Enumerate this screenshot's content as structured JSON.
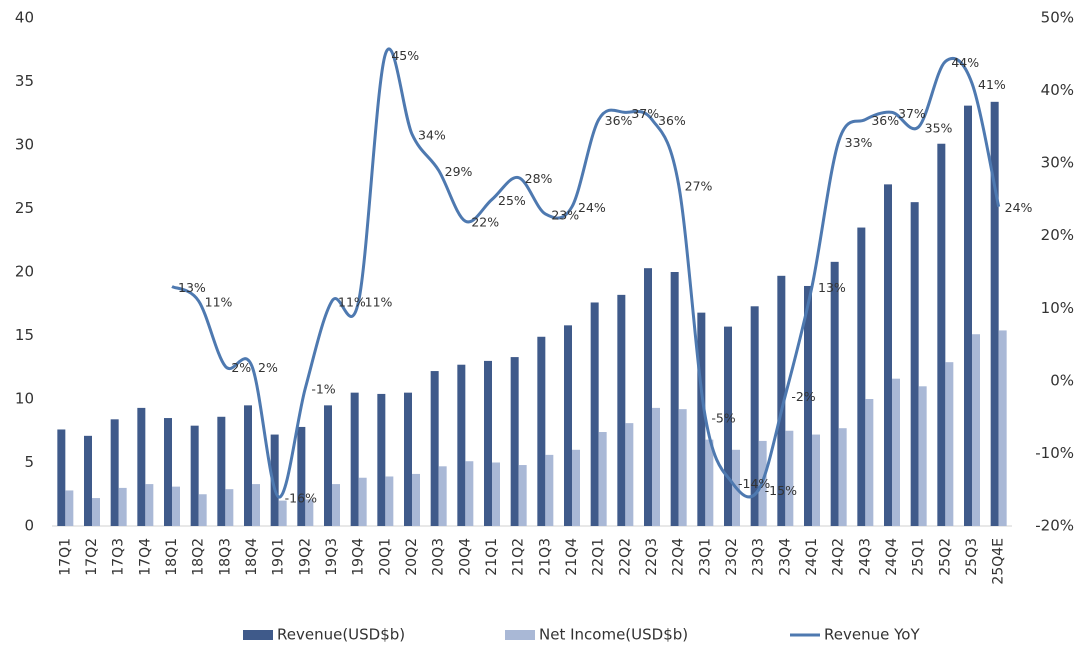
{
  "chart_data": {
    "type": "bar-line",
    "categories": [
      "17Q1",
      "17Q2",
      "17Q3",
      "17Q4",
      "18Q1",
      "18Q2",
      "18Q3",
      "18Q4",
      "19Q1",
      "19Q2",
      "19Q3",
      "19Q4",
      "20Q1",
      "20Q2",
      "20Q3",
      "20Q4",
      "21Q1",
      "21Q2",
      "21Q3",
      "21Q4",
      "22Q1",
      "22Q2",
      "22Q3",
      "22Q4",
      "23Q1",
      "23Q2",
      "23Q3",
      "23Q4",
      "24Q1",
      "24Q2",
      "24Q3",
      "24Q4",
      "25Q1",
      "25Q2",
      "25Q3",
      "25Q4E"
    ],
    "series": [
      {
        "name": "Revenue(USD$b)",
        "type": "bar",
        "color": "#3f5a8a",
        "values": [
          7.6,
          7.1,
          8.4,
          9.3,
          8.5,
          7.9,
          8.6,
          9.5,
          7.2,
          7.8,
          9.5,
          10.5,
          10.4,
          10.5,
          12.2,
          12.7,
          13.0,
          13.3,
          14.9,
          15.8,
          17.6,
          18.2,
          20.3,
          20.0,
          16.8,
          15.7,
          17.3,
          19.7,
          18.9,
          20.8,
          23.5,
          26.9,
          25.5,
          30.1,
          33.1,
          33.4
        ]
      },
      {
        "name": "Net Income(USD$b)",
        "type": "bar",
        "color": "#a9b8d6",
        "values": [
          2.8,
          2.2,
          3.0,
          3.3,
          3.1,
          2.5,
          2.9,
          3.3,
          2.0,
          2.1,
          3.3,
          3.8,
          3.9,
          4.1,
          4.7,
          5.1,
          5.0,
          4.8,
          5.6,
          6.0,
          7.4,
          8.1,
          9.3,
          9.2,
          6.8,
          6.0,
          6.7,
          7.5,
          7.2,
          7.7,
          10.0,
          11.6,
          11.0,
          12.9,
          15.1,
          15.4
        ]
      },
      {
        "name": "Revenue YoY",
        "type": "line",
        "axis": "y2",
        "color": "#4e79b0",
        "values": [
          null,
          null,
          null,
          null,
          13,
          11,
          2,
          2,
          -16,
          -1,
          11,
          11,
          45,
          34,
          29,
          22,
          25,
          28,
          23,
          24,
          36,
          37,
          36,
          27,
          -5,
          -14,
          -15,
          -2,
          13,
          33,
          36,
          37,
          35,
          44,
          41,
          24
        ],
        "value_labels": [
          null,
          null,
          null,
          null,
          "13%",
          "11%",
          "2%",
          "2%",
          "-16%",
          "-1%",
          "11%",
          "11%",
          "45%",
          "34%",
          "29%",
          "22%",
          "25%",
          "28%",
          "23%",
          "24%",
          "36%",
          "37%",
          "36%",
          "27%",
          "-5%",
          "-14%",
          "-15%",
          "-2%",
          "13%",
          "33%",
          "36%",
          "37%",
          "35%",
          "44%",
          "41%",
          "24%"
        ]
      }
    ],
    "ylim": [
      0,
      40
    ],
    "yticks": [
      0,
      5,
      10,
      15,
      20,
      25,
      30,
      35,
      40
    ],
    "y2lim": [
      -20,
      50
    ],
    "y2ticks": [
      {
        "value": -20,
        "label": "-20%"
      },
      {
        "value": -10,
        "label": "-10%"
      },
      {
        "value": 0,
        "label": "0%"
      },
      {
        "value": 10,
        "label": "10%"
      },
      {
        "value": 20,
        "label": "20%"
      },
      {
        "value": 30,
        "label": "30%"
      },
      {
        "value": 40,
        "label": "40%"
      },
      {
        "value": 50,
        "label": "50%"
      }
    ],
    "legend": "bottom",
    "grid": false
  }
}
